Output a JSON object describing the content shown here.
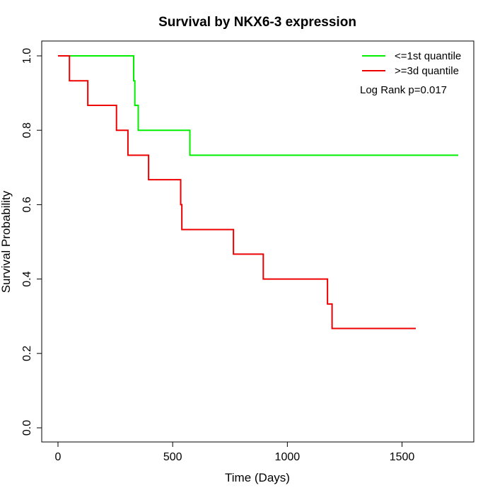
{
  "chart_data": {
    "type": "line",
    "title": "Survival by NKX6-3 expression",
    "xlabel": "Time (Days)",
    "ylabel": "Survival Probability",
    "xlim": [
      0,
      1750
    ],
    "ylim": [
      0,
      1
    ],
    "x_ticks": [
      0,
      500,
      1000,
      1500
    ],
    "y_ticks": [
      0.0,
      0.2,
      0.4,
      0.6,
      0.8,
      1.0
    ],
    "x_tick_labels": [
      "0",
      "500",
      "1000",
      "1500"
    ],
    "y_tick_labels": [
      "0.0",
      "0.2",
      "0.4",
      "0.6",
      "0.8",
      "1.0"
    ],
    "grid": false,
    "legend_position": "top-right",
    "annotation": "Log Rank p=0.017",
    "series": [
      {
        "name": "<=1st quantile",
        "color": "#00ee00",
        "step": true,
        "x": [
          0,
          330,
          335,
          350,
          575,
          1745
        ],
        "y": [
          1.0,
          0.933,
          0.867,
          0.8,
          0.733,
          0.733
        ]
      },
      {
        "name": ">=3d quantile",
        "color": "#ee0000",
        "step": true,
        "x": [
          0,
          50,
          130,
          255,
          305,
          395,
          535,
          540,
          765,
          895,
          1175,
          1195,
          1560
        ],
        "y": [
          1.0,
          0.933,
          0.867,
          0.8,
          0.733,
          0.667,
          0.6,
          0.533,
          0.467,
          0.4,
          0.333,
          0.267,
          0.267
        ]
      }
    ]
  }
}
